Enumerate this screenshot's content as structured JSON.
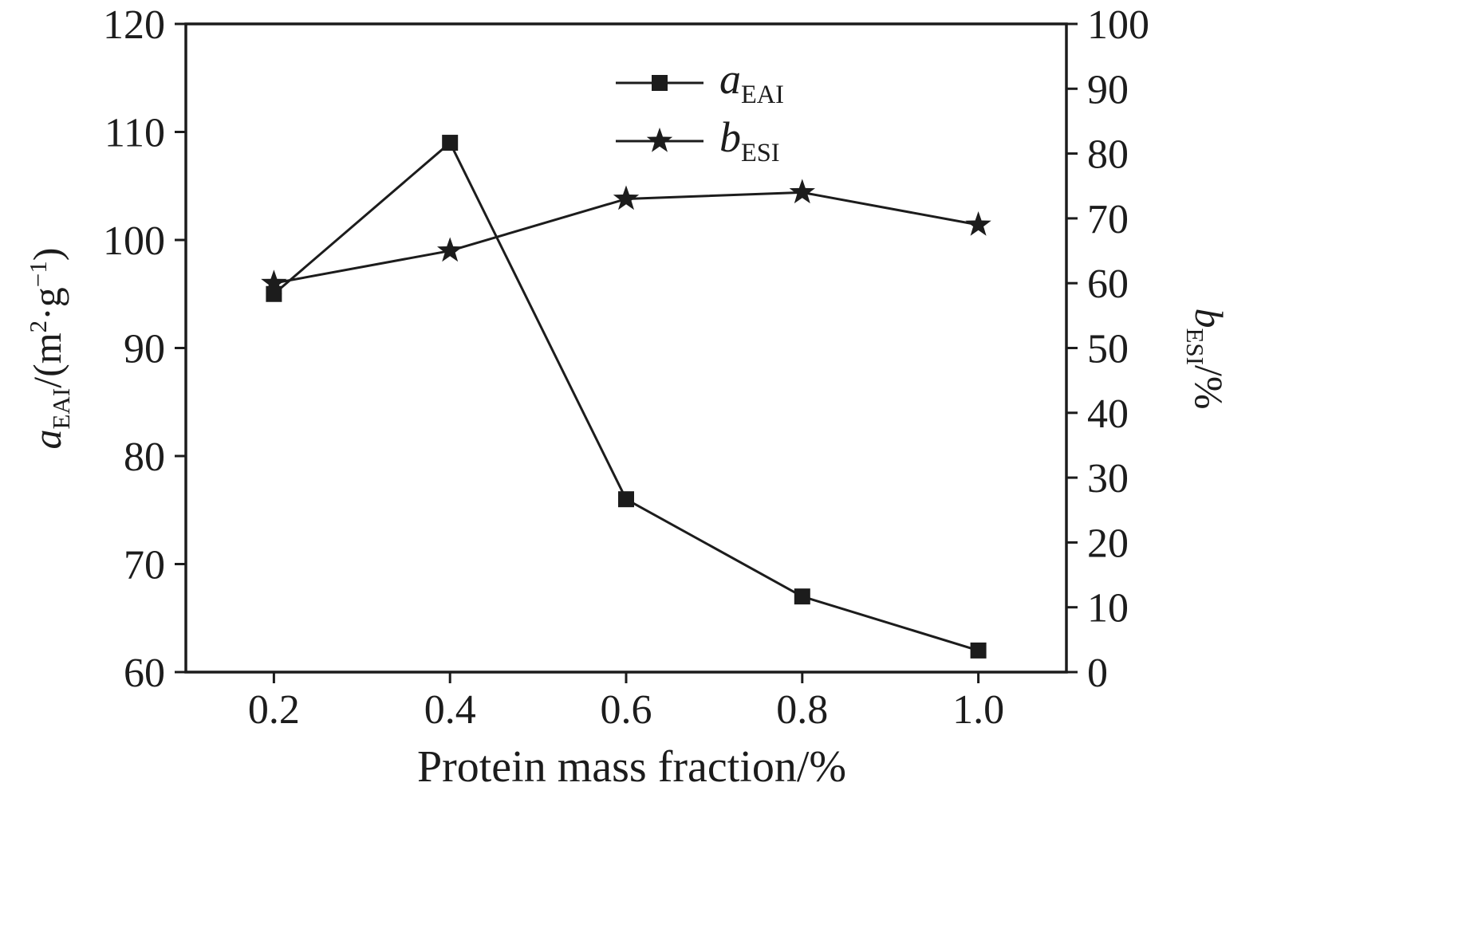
{
  "figure": {
    "background": "#ffffff",
    "ink_color": "#1c1c1c"
  },
  "axis_titles": {
    "left": {
      "var": "a",
      "sub": "EAI",
      "part1": "/(m",
      "sup1": "2",
      "part2": "·g",
      "sup2": "−1",
      "part3": ")"
    },
    "right": {
      "var": "b",
      "sub": "ESI",
      "part1": "/%"
    },
    "x": "Protein mass fraction/%"
  },
  "legend": {
    "items": [
      {
        "var": "a",
        "sub": "EAI",
        "marker": "square"
      },
      {
        "var": "b",
        "sub": "ESI",
        "marker": "star"
      }
    ]
  },
  "chart_data": {
    "type": "line",
    "title": "",
    "xlabel": "Protein mass fraction/%",
    "x": [
      0.2,
      0.4,
      0.6,
      0.8,
      1.0
    ],
    "x_tick_labels": [
      "0.2",
      "0.4",
      "0.6",
      "0.8",
      "1.0"
    ],
    "xlim": [
      0.1,
      1.1
    ],
    "left_axis": {
      "label": "a_EAI/(m2·g−1)",
      "lim": [
        60,
        120
      ],
      "ticks": [
        60,
        70,
        80,
        90,
        100,
        110,
        120
      ]
    },
    "right_axis": {
      "label": "b_ESI/%",
      "lim": [
        0,
        100
      ],
      "ticks": [
        0,
        10,
        20,
        30,
        40,
        50,
        60,
        70,
        80,
        90,
        100
      ]
    },
    "series": [
      {
        "name": "a_EAI",
        "axis": "left",
        "marker": "square",
        "values": [
          95,
          109,
          76,
          67,
          62
        ]
      },
      {
        "name": "b_ESI",
        "axis": "right",
        "marker": "star",
        "values": [
          60,
          65,
          73,
          74,
          69
        ]
      }
    ],
    "grid": false,
    "legend_position": "inside upper center-right",
    "line_color": "#1c1c1c"
  }
}
